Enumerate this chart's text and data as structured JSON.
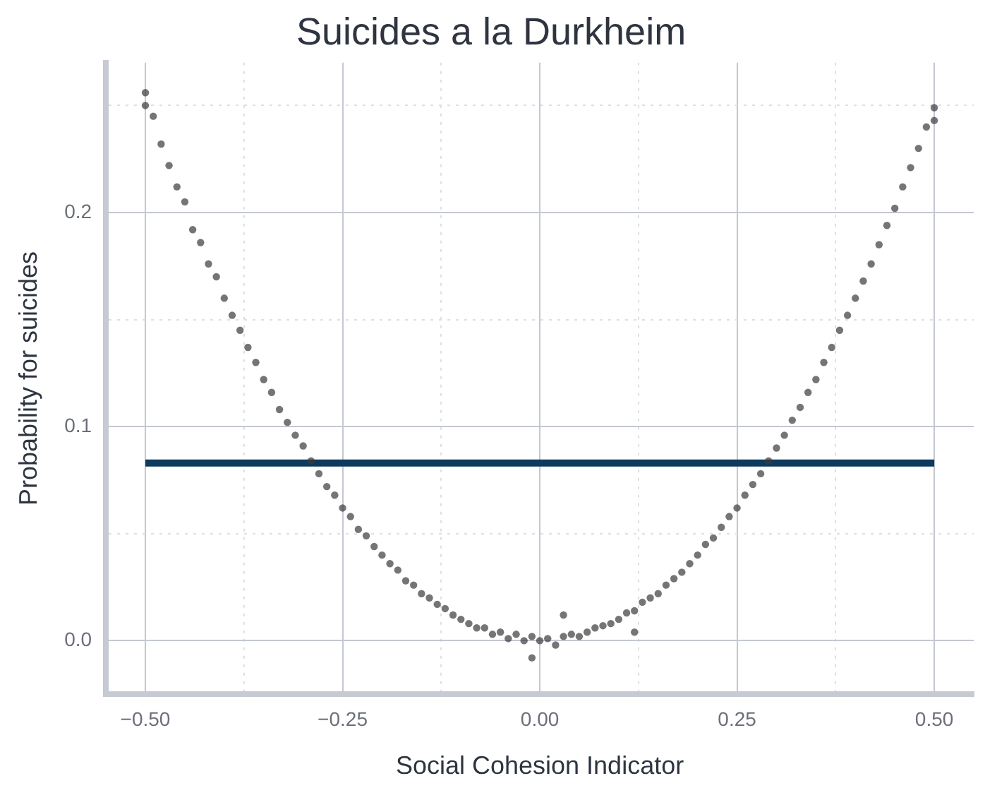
{
  "chart_data": {
    "type": "scatter",
    "title": "Suicides a la Durkheim",
    "xlabel": "Social Cohesion Indicator",
    "ylabel": "Probability for suicides",
    "xlim": [
      -0.55,
      0.55
    ],
    "ylim": [
      -0.025,
      0.27
    ],
    "xticks": [
      {
        "value": -0.5,
        "label": "−0.50"
      },
      {
        "value": -0.375,
        "label": null
      },
      {
        "value": -0.25,
        "label": "−0.25"
      },
      {
        "value": -0.125,
        "label": null
      },
      {
        "value": 0,
        "label": "0.00"
      },
      {
        "value": 0.125,
        "label": null
      },
      {
        "value": 0.25,
        "label": "0.25"
      },
      {
        "value": 0.375,
        "label": null
      },
      {
        "value": 0.5,
        "label": "0.50"
      }
    ],
    "yticks": [
      {
        "value": 0,
        "label": "0.0"
      },
      {
        "value": 0.05,
        "label": null
      },
      {
        "value": 0.1,
        "label": "0.1"
      },
      {
        "value": 0.15,
        "label": null
      },
      {
        "value": 0.2,
        "label": "0.2"
      },
      {
        "value": 0.25,
        "label": null
      }
    ],
    "grid": true,
    "legend": false,
    "series": [
      {
        "marker": "circle",
        "color": "#3a3a3a",
        "x": [
          -0.5,
          -0.49,
          -0.48,
          -0.47,
          -0.46,
          -0.45,
          -0.44,
          -0.43,
          -0.42,
          -0.41,
          -0.4,
          -0.39,
          -0.38,
          -0.37,
          -0.36,
          -0.35,
          -0.34,
          -0.33,
          -0.32,
          -0.31,
          -0.3,
          -0.29,
          -0.28,
          -0.27,
          -0.26,
          -0.25,
          -0.24,
          -0.23,
          -0.22,
          -0.21,
          -0.2,
          -0.19,
          -0.18,
          -0.17,
          -0.16,
          -0.15,
          -0.14,
          -0.13,
          -0.12,
          -0.11,
          -0.1,
          -0.09,
          -0.08,
          -0.07,
          -0.06,
          -0.05,
          -0.04,
          -0.03,
          -0.02,
          -0.01,
          0,
          0.01,
          0.02,
          0.03,
          0.04,
          0.05,
          0.06,
          0.07,
          0.08,
          0.09,
          0.1,
          0.11,
          0.12,
          0.13,
          0.14,
          0.15,
          0.16,
          0.17,
          0.18,
          0.19,
          0.2,
          0.21,
          0.22,
          0.23,
          0.24,
          0.25,
          0.26,
          0.27,
          0.28,
          0.29,
          0.3,
          0.31,
          0.32,
          0.33,
          0.34,
          0.35,
          0.36,
          0.37,
          0.38,
          0.39,
          0.4,
          0.41,
          0.42,
          0.43,
          0.44,
          0.45,
          0.46,
          0.47,
          0.48,
          0.49,
          0.5,
          -0.01,
          0.12,
          0.03,
          -0.5,
          0.5
        ],
        "values": [
          0.25,
          0.245,
          0.232,
          0.222,
          0.212,
          0.205,
          0.192,
          0.186,
          0.176,
          0.17,
          0.16,
          0.152,
          0.145,
          0.137,
          0.13,
          0.122,
          0.116,
          0.108,
          0.102,
          0.096,
          0.091,
          0.084,
          0.078,
          0.072,
          0.068,
          0.062,
          0.058,
          0.052,
          0.049,
          0.044,
          0.04,
          0.036,
          0.033,
          0.028,
          0.026,
          0.022,
          0.02,
          0.017,
          0.015,
          0.012,
          0.01,
          0.008,
          0.006,
          0.006,
          0.003,
          0.004,
          0.001,
          0.003,
          0.0,
          0.002,
          0.0,
          0.001,
          -0.002,
          0.002,
          0.003,
          0.002,
          0.004,
          0.006,
          0.007,
          0.008,
          0.01,
          0.013,
          0.014,
          0.018,
          0.02,
          0.022,
          0.026,
          0.029,
          0.032,
          0.036,
          0.04,
          0.045,
          0.048,
          0.053,
          0.058,
          0.062,
          0.068,
          0.073,
          0.078,
          0.084,
          0.09,
          0.096,
          0.103,
          0.109,
          0.116,
          0.122,
          0.13,
          0.137,
          0.145,
          0.152,
          0.16,
          0.168,
          0.176,
          0.185,
          0.194,
          0.202,
          0.212,
          0.221,
          0.23,
          0.24,
          0.249,
          -0.008,
          0.004,
          0.012,
          0.256,
          0.243
        ]
      },
      {
        "type": "line",
        "color": "#0d3b5e",
        "line_style": "solid",
        "x": [
          -0.5,
          0.5
        ],
        "values": [
          0.083,
          0.083
        ]
      }
    ]
  }
}
